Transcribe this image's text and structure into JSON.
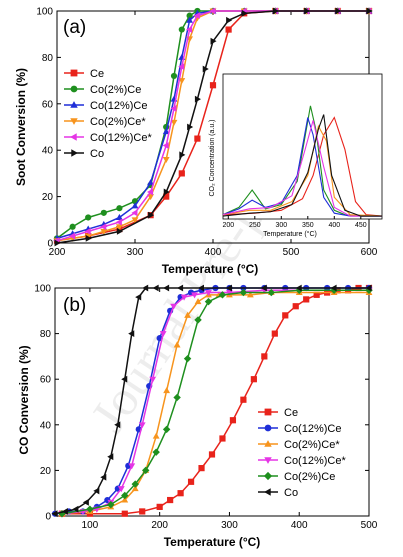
{
  "watermark": "Journal Pre-proof",
  "chart_data": [
    {
      "panel_label": "(a)",
      "type": "line",
      "xlabel": "Temperature (°C)",
      "ylabel": "Soot Conversion (%)",
      "xlim": [
        200,
        600
      ],
      "ylim": [
        0,
        100
      ],
      "xticks": [
        200,
        300,
        400,
        500,
        600
      ],
      "yticks": [
        0,
        20,
        40,
        60,
        80,
        100
      ],
      "legend_position": "top-left",
      "series": [
        {
          "name": "Ce",
          "color": "#e8231b",
          "marker": "square",
          "x": [
            200,
            240,
            280,
            320,
            340,
            360,
            380,
            400,
            420,
            440,
            480,
            520,
            560,
            600
          ],
          "y": [
            1,
            3,
            6,
            12,
            20,
            30,
            45,
            68,
            92,
            99,
            100,
            100,
            100,
            100
          ]
        },
        {
          "name": "Co(2%)Ce",
          "color": "#1e8f1e",
          "marker": "circle",
          "x": [
            200,
            220,
            240,
            260,
            280,
            300,
            320,
            340,
            350,
            360,
            370,
            380,
            400,
            440,
            480,
            520,
            560,
            600
          ],
          "y": [
            2,
            7,
            11,
            13,
            15,
            18,
            25,
            50,
            72,
            92,
            98,
            100,
            100,
            100,
            100,
            100,
            100,
            100
          ]
        },
        {
          "name": "Co(12%)Ce",
          "color": "#1f2fd8",
          "marker": "triangle-up",
          "x": [
            200,
            220,
            240,
            260,
            280,
            300,
            320,
            340,
            350,
            360,
            370,
            380,
            400,
            440,
            480,
            520,
            560,
            600
          ],
          "y": [
            2,
            4,
            6,
            8,
            11,
            16,
            26,
            48,
            62,
            80,
            96,
            99,
            100,
            100,
            100,
            100,
            100,
            100
          ]
        },
        {
          "name": "Co(2%)Ce*",
          "color": "#f7941d",
          "marker": "triangle-down",
          "x": [
            200,
            220,
            240,
            260,
            280,
            300,
            320,
            340,
            350,
            360,
            370,
            380,
            400,
            440,
            480,
            520,
            560,
            600
          ],
          "y": [
            1,
            2,
            3,
            5,
            7,
            10,
            20,
            36,
            52,
            70,
            88,
            97,
            100,
            100,
            100,
            100,
            100,
            100
          ]
        },
        {
          "name": "Co(12%)Ce*",
          "color": "#e535e5",
          "marker": "triangle-left",
          "x": [
            200,
            220,
            240,
            260,
            280,
            300,
            320,
            340,
            350,
            360,
            370,
            380,
            400,
            440,
            480,
            520,
            560,
            600
          ],
          "y": [
            1,
            3,
            5,
            7,
            9,
            13,
            22,
            42,
            58,
            76,
            92,
            98,
            100,
            100,
            100,
            100,
            100,
            100
          ]
        },
        {
          "name": "Co",
          "color": "#111111",
          "marker": "triangle-right",
          "x": [
            200,
            240,
            280,
            320,
            340,
            360,
            370,
            380,
            390,
            400,
            420,
            440,
            480,
            520,
            560,
            600
          ],
          "y": [
            0,
            2,
            5,
            12,
            22,
            38,
            50,
            62,
            75,
            87,
            96,
            99,
            100,
            100,
            100,
            100
          ]
        }
      ],
      "inset": {
        "xlabel": "Temperature (°C)",
        "ylabel": "CO₂ Concentration (a.u.)",
        "xlim": [
          190,
          490
        ],
        "xticks": [
          200,
          250,
          300,
          350,
          400,
          450
        ],
        "ylim": [
          0,
          100
        ],
        "series": [
          {
            "name": "Ce",
            "color": "#e8231b",
            "x": [
              190,
              250,
              300,
              340,
              360,
              380,
              400,
              420,
              440,
              460,
              490
            ],
            "y": [
              3,
              4,
              6,
              14,
              30,
              58,
              70,
              48,
              12,
              3,
              2
            ]
          },
          {
            "name": "Co(2%)Ce",
            "color": "#1e8f1e",
            "x": [
              190,
              220,
              245,
              270,
              300,
              330,
              355,
              365,
              380,
              400,
              420,
              450,
              490
            ],
            "y": [
              3,
              8,
              20,
              7,
              10,
              26,
              78,
              62,
              20,
              6,
              3,
              2,
              2
            ]
          },
          {
            "name": "Co(12%)Ce",
            "color": "#1f2fd8",
            "x": [
              190,
              220,
              245,
              270,
              300,
              330,
              350,
              360,
              380,
              400,
              430,
              490
            ],
            "y": [
              3,
              7,
              13,
              8,
              11,
              30,
              70,
              58,
              15,
              4,
              2,
              2
            ]
          },
          {
            "name": "Co(2%)Ce*",
            "color": "#f7941d",
            "x": [
              190,
              240,
              280,
              320,
              350,
              370,
              385,
              400,
              430,
              490
            ],
            "y": [
              3,
              6,
              6,
              12,
              30,
              64,
              54,
              15,
              3,
              2
            ]
          },
          {
            "name": "Co(12%)Ce*",
            "color": "#e535e5",
            "x": [
              190,
              240,
              280,
              320,
              345,
              360,
              380,
              400,
              430,
              490
            ],
            "y": [
              3,
              7,
              8,
              16,
              48,
              68,
              36,
              8,
              2,
              2
            ]
          },
          {
            "name": "Co",
            "color": "#111111",
            "x": [
              190,
              240,
              280,
              320,
              350,
              370,
              380,
              395,
              420,
              450,
              490
            ],
            "y": [
              2,
              4,
              5,
              10,
              32,
              62,
              72,
              30,
              6,
              2,
              2
            ]
          }
        ]
      }
    },
    {
      "panel_label": "(b)",
      "type": "line",
      "xlabel": "Temperature (°C)",
      "ylabel": "CO Conversion (%)",
      "xlim": [
        50,
        500
      ],
      "ylim": [
        0,
        100
      ],
      "xticks": [
        100,
        200,
        300,
        400,
        500
      ],
      "yticks": [
        0,
        20,
        40,
        60,
        80,
        100
      ],
      "legend_position": "bottom-right",
      "series": [
        {
          "name": "Ce",
          "color": "#e8231b",
          "marker": "square",
          "x": [
            60,
            100,
            150,
            175,
            200,
            215,
            230,
            245,
            260,
            275,
            290,
            305,
            320,
            335,
            350,
            365,
            380,
            395,
            410,
            425,
            440,
            455,
            470,
            485,
            500
          ],
          "y": [
            1,
            1,
            1,
            2,
            4,
            7,
            10,
            15,
            21,
            27,
            34,
            42,
            51,
            60,
            70,
            80,
            88,
            92,
            95,
            97,
            98,
            99,
            99,
            100,
            100
          ]
        },
        {
          "name": "Co(12%)Ce",
          "color": "#1f2fd8",
          "marker": "circle",
          "x": [
            50,
            70,
            90,
            110,
            125,
            140,
            155,
            170,
            185,
            200,
            215,
            230,
            245,
            260,
            280,
            300,
            320,
            350,
            380,
            410,
            440,
            470,
            500
          ],
          "y": [
            1,
            2,
            2,
            4,
            7,
            12,
            22,
            38,
            57,
            78,
            90,
            96,
            98,
            99,
            100,
            100,
            100,
            100,
            100,
            100,
            100,
            100,
            100
          ]
        },
        {
          "name": "Co(2%)Ce*",
          "color": "#f7941d",
          "marker": "triangle-up",
          "x": [
            60,
            100,
            130,
            150,
            165,
            180,
            195,
            210,
            225,
            240,
            255,
            270,
            285,
            300,
            330,
            360,
            400,
            450,
            500
          ],
          "y": [
            1,
            2,
            4,
            7,
            12,
            20,
            35,
            55,
            75,
            88,
            94,
            97,
            97,
            97,
            97,
            98,
            98,
            98,
            98
          ]
        },
        {
          "name": "Co(12%)Ce*",
          "color": "#e535e5",
          "marker": "triangle-down",
          "x": [
            60,
            90,
            110,
            130,
            145,
            160,
            175,
            190,
            205,
            220,
            235,
            250,
            270,
            300,
            350,
            400,
            450,
            500
          ],
          "y": [
            1,
            2,
            3,
            6,
            12,
            22,
            40,
            60,
            80,
            92,
            96,
            97,
            98,
            98,
            99,
            99,
            99,
            99
          ]
        },
        {
          "name": "Co(2%)Ce",
          "color": "#1e8f1e",
          "marker": "diamond",
          "x": [
            60,
            100,
            130,
            150,
            165,
            180,
            195,
            210,
            225,
            240,
            255,
            270,
            290,
            320,
            360,
            400,
            450,
            500
          ],
          "y": [
            1,
            3,
            5,
            9,
            14,
            20,
            28,
            38,
            52,
            69,
            86,
            94,
            97,
            98,
            98,
            99,
            99,
            99
          ]
        },
        {
          "name": "Co",
          "color": "#111111",
          "marker": "triangle-left",
          "x": [
            50,
            65,
            80,
            95,
            110,
            120,
            130,
            140,
            150,
            160,
            170,
            180,
            195,
            210,
            230,
            260,
            300,
            350,
            400,
            450,
            500
          ],
          "y": [
            1,
            2,
            3,
            6,
            11,
            17,
            26,
            40,
            60,
            80,
            96,
            100,
            100,
            100,
            100,
            100,
            100,
            100,
            100,
            100,
            100
          ]
        }
      ]
    }
  ]
}
